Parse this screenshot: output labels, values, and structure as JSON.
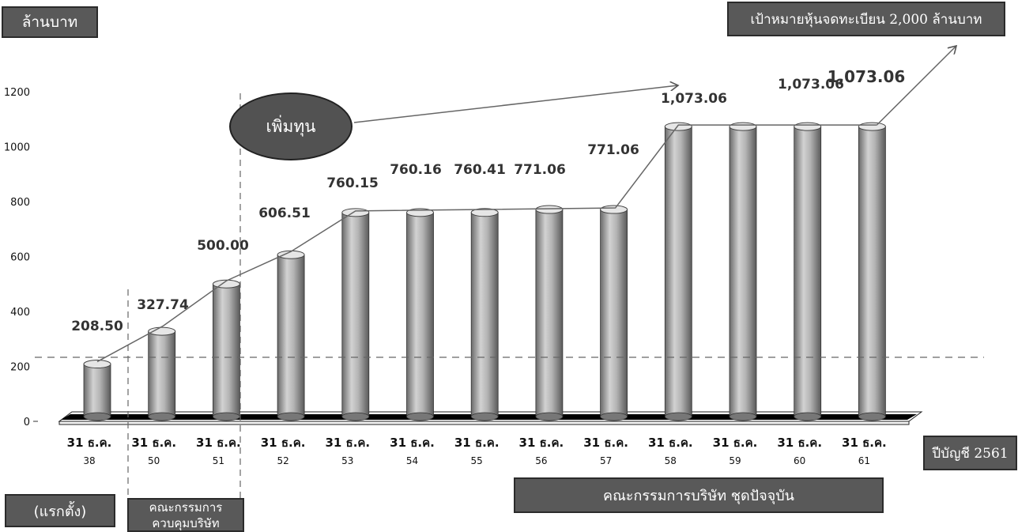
{
  "chart_data": {
    "type": "bar",
    "categories": [
      "31 ธ.ค. 38",
      "31 ธ.ค. 50",
      "31 ธ.ค. 51",
      "31 ธ.ค. 52",
      "31 ธ.ค. 53",
      "31 ธ.ค. 54",
      "31 ธ.ค. 55",
      "31 ธ.ค. 56",
      "31 ธ.ค. 57",
      "31 ธ.ค. 58",
      "31 ธ.ค. 59",
      "31 ธ.ค. 60",
      "31 ธ.ค. 61"
    ],
    "category_lines": [
      [
        "31 ธ.ค.",
        "38"
      ],
      [
        "31 ธ.ค.",
        "50"
      ],
      [
        "31 ธ.ค.",
        "51"
      ],
      [
        "31 ธ.ค.",
        "52"
      ],
      [
        "31 ธ.ค.",
        "53"
      ],
      [
        "31 ธ.ค.",
        "54"
      ],
      [
        "31 ธ.ค.",
        "55"
      ],
      [
        "31 ธ.ค.",
        "56"
      ],
      [
        "31 ธ.ค.",
        "57"
      ],
      [
        "31 ธ.ค.",
        "58"
      ],
      [
        "31 ธ.ค.",
        "59"
      ],
      [
        "31 ธ.ค.",
        "60"
      ],
      [
        "31 ธ.ค.",
        "61"
      ]
    ],
    "values": [
      208.5,
      327.74,
      500.0,
      606.51,
      760.15,
      760.16,
      760.41,
      771.06,
      771.06,
      1073.06,
      1073.06,
      1073.06,
      1073.06
    ],
    "data_labels": [
      "208.50",
      "327.74",
      "500.00",
      "606.51",
      "760.15",
      "760.16",
      "760.41",
      "771.06",
      "771.06",
      "1,073.06",
      "",
      "1,073.06",
      "1,073.06"
    ],
    "ylim": [
      0,
      1200
    ],
    "yticks": [
      "0",
      "200",
      "400",
      "600",
      "800",
      "1000",
      "1200"
    ],
    "ylabel": "ล้านบาท",
    "xlabel": "ปีบัญชี 2561",
    "grid": false,
    "bar_color": "#a6a6a6",
    "floor_color": "#000000"
  },
  "annotations": {
    "increase_capital": "เพิ่มทุน",
    "listed_target": "เป้าหมายหุ้นจดทะเบียน 2,000 ล้านบาท",
    "founding": "(แรกตั้ง)",
    "supervisory_committee": "คณะกรรมการ\nควบคุมบริษัท",
    "current_board": "คณะกรรมการบริษัท ชุดปัจจุบัน"
  }
}
